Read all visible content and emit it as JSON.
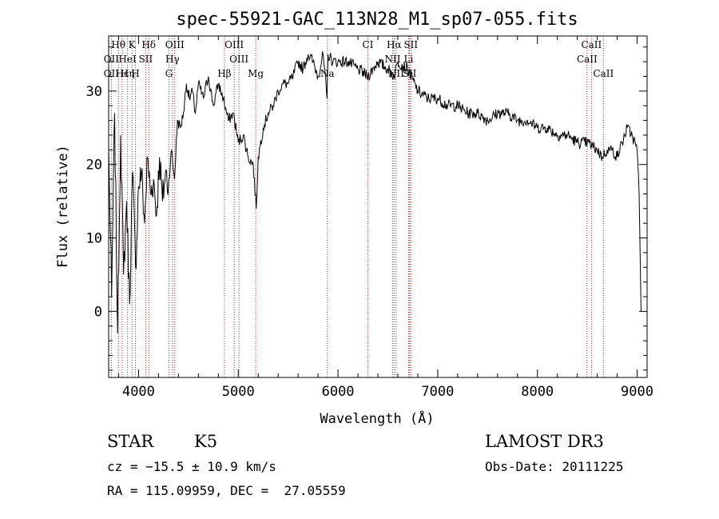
{
  "chart_data": {
    "type": "line",
    "title": "spec-55921-GAC_113N28_M1_sp07-055.fits",
    "xlabel": "Wavelength (Å)",
    "ylabel": "Flux (relative)",
    "xlim": [
      3700,
      9100
    ],
    "ylim": [
      -9,
      37.5
    ],
    "xticks": [
      4000,
      5000,
      6000,
      7000,
      8000,
      9000
    ],
    "yticks": [
      0,
      10,
      20,
      30
    ],
    "series": [
      {
        "name": "spectrum",
        "x": [
          3700,
          3730,
          3760,
          3790,
          3820,
          3850,
          3880,
          3910,
          3940,
          3970,
          4000,
          4030,
          4060,
          4090,
          4120,
          4150,
          4180,
          4210,
          4240,
          4270,
          4300,
          4330,
          4360,
          4390,
          4420,
          4450,
          4480,
          4510,
          4540,
          4570,
          4600,
          4650,
          4700,
          4750,
          4800,
          4850,
          4900,
          4950,
          5000,
          5050,
          5100,
          5150,
          5180,
          5200,
          5250,
          5300,
          5350,
          5400,
          5450,
          5500,
          5550,
          5600,
          5650,
          5700,
          5750,
          5800,
          5850,
          5890,
          5900,
          5950,
          6000,
          6100,
          6200,
          6300,
          6400,
          6500,
          6563,
          6600,
          6700,
          6800,
          6900,
          7000,
          7100,
          7200,
          7300,
          7400,
          7500,
          7600,
          7700,
          7800,
          7900,
          8000,
          8100,
          8200,
          8300,
          8400,
          8500,
          8600,
          8650,
          8700,
          8750,
          8800,
          8850,
          8900,
          8950,
          9000,
          9020,
          9040
        ],
        "y": [
          22,
          2,
          27,
          -3,
          24,
          5,
          15,
          1,
          19,
          6,
          17,
          19,
          12,
          21,
          16,
          18,
          13,
          21,
          15,
          19,
          17,
          22,
          18,
          26,
          25,
          27,
          31,
          29,
          30,
          27,
          31,
          29,
          32,
          28,
          31,
          29,
          26,
          27,
          23,
          24,
          21,
          20,
          14,
          21,
          25,
          27,
          28,
          30,
          31,
          31,
          32,
          34,
          33,
          35,
          34,
          32,
          35,
          29,
          35,
          34,
          34,
          34,
          33,
          32,
          34,
          33,
          32,
          34,
          33,
          30,
          29,
          29,
          28,
          28,
          27,
          27,
          26,
          27,
          27,
          26,
          26,
          25,
          25,
          24,
          24,
          23,
          23,
          22,
          21,
          22,
          22,
          21,
          23,
          25,
          24,
          22,
          16,
          0
        ]
      }
    ],
    "lines": [
      {
        "name": "Hθ",
        "x": 3798,
        "row": 0
      },
      {
        "name": "K",
        "x": 3934,
        "row": 0
      },
      {
        "name": "Hδ",
        "x": 4102,
        "row": 0
      },
      {
        "name": "OIII",
        "x": 4363,
        "row": 0
      },
      {
        "name": "OIII",
        "x": 4959,
        "row": 0
      },
      {
        "name": "CI",
        "x": 6300,
        "row": 0
      },
      {
        "name": "Hα",
        "x": 6563,
        "row": 0
      },
      {
        "name": "SII",
        "x": 6731,
        "row": 0
      },
      {
        "name": "CaII",
        "x": 8542,
        "row": 0
      },
      {
        "name": "OII",
        "x": 3727,
        "row": 1
      },
      {
        "name": "HeI",
        "x": 3889,
        "row": 1
      },
      {
        "name": "SII",
        "x": 4072,
        "row": 1
      },
      {
        "name": "Hγ",
        "x": 4340,
        "row": 1
      },
      {
        "name": "OIII",
        "x": 5007,
        "row": 1
      },
      {
        "name": "NII",
        "x": 6548,
        "row": 1
      },
      {
        "name": "Li",
        "x": 6708,
        "row": 1
      },
      {
        "name": "CaII",
        "x": 8498,
        "row": 1
      },
      {
        "name": "OII",
        "x": 3727,
        "row": 2
      },
      {
        "name": "Hε",
        "x": 3835,
        "row": 2
      },
      {
        "name": "Hη",
        "x": 3889,
        "row": 2
      },
      {
        "name": "H",
        "x": 3968,
        "row": 2
      },
      {
        "name": "G",
        "x": 4305,
        "row": 2
      },
      {
        "name": "Hβ",
        "x": 4861,
        "row": 2
      },
      {
        "name": "Mg",
        "x": 5175,
        "row": 2
      },
      {
        "name": "Na",
        "x": 5893,
        "row": 2
      },
      {
        "name": "NII",
        "x": 6583,
        "row": 2
      },
      {
        "name": "SII",
        "x": 6717,
        "row": 2
      },
      {
        "name": "CaII",
        "x": 8662,
        "row": 2
      }
    ]
  },
  "info": {
    "class": "STAR",
    "subclass": "K5",
    "survey": "LAMOST DR3",
    "cz": "cz = −15.5 ± 10.9 km/s",
    "obs_date": "Obs-Date: 20111225",
    "radec": "RA = 115.09959, DEC =  27.05559"
  },
  "colors": {
    "line_marker": "#b22222",
    "spectrum": "#000000"
  }
}
